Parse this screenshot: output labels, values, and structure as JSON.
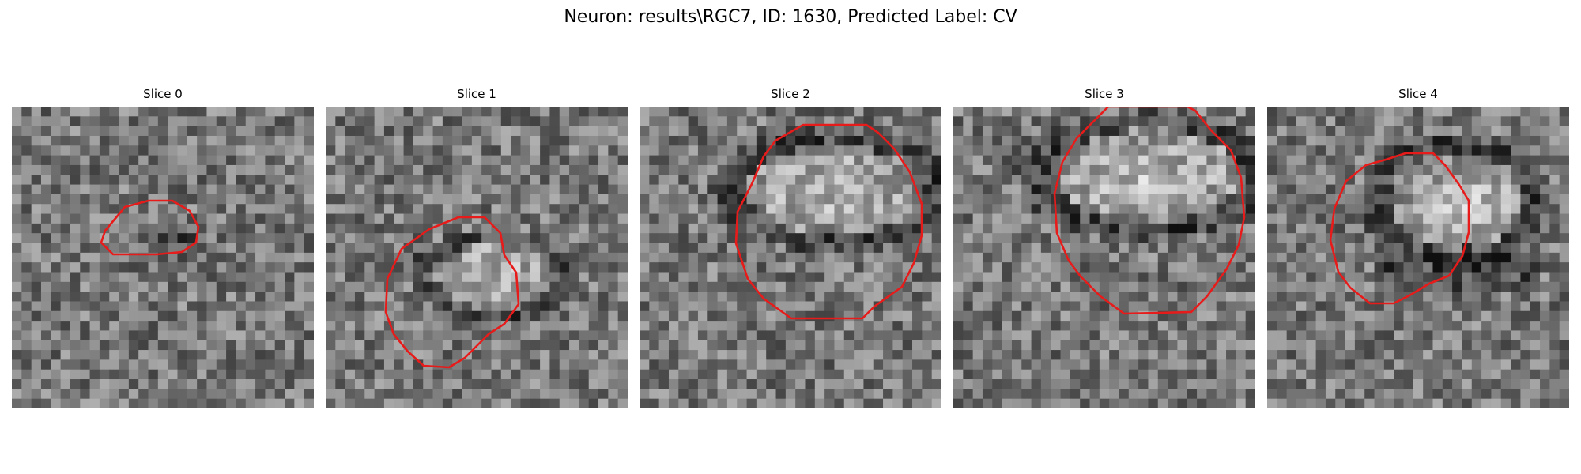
{
  "figure": {
    "title": "Neuron: results\\RGC7, ID: 1630, Predicted Label: CV"
  },
  "colors": {
    "background": "#ffffff",
    "contour": "#e81b1b",
    "colormap": "grayscale"
  },
  "slices": [
    {
      "title": "Slice 0",
      "brightness": "dark"
    },
    {
      "title": "Slice 1",
      "brightness": "bright"
    },
    {
      "title": "Slice 2",
      "brightness": "bright"
    },
    {
      "title": "Slice 3",
      "brightness": "bright"
    },
    {
      "title": "Slice 4",
      "brightness": "bright"
    }
  ]
}
